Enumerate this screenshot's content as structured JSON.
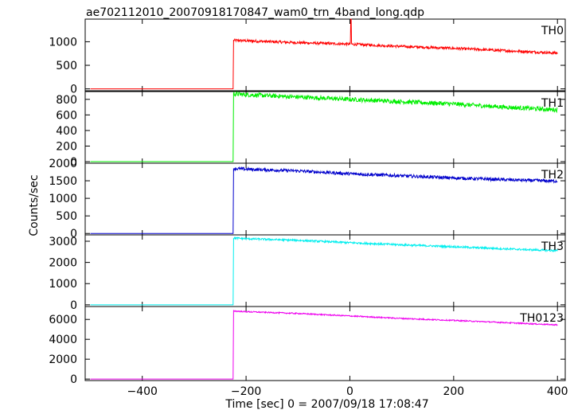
{
  "title": "ae702112010_20070918170847_wam0_trn_4band_long.qdp",
  "ylabel": "Counts/sec",
  "xlabel": "Time [sec] 0 = 2007/09/18 17:08:47",
  "colors": {
    "axis": "#000000",
    "TH0": "#ff0000",
    "TH1": "#00ee00",
    "TH2": "#0000cc",
    "TH3": "#00eeee",
    "TH0123": "#ee00ee"
  },
  "chart_data": {
    "type": "line",
    "title": "ae702112010_20070918170847_wam0_trn_4band_long.qdp",
    "xlabel": "Time [sec] 0 = 2007/09/18 17:08:47",
    "ylabel": "Counts/sec",
    "xlim": [
      -510,
      415
    ],
    "x_ticks": [
      -400,
      -200,
      0,
      200,
      400
    ],
    "x_tick_labels": [
      "−400",
      "−200",
      "0",
      "200",
      "400"
    ],
    "grid": false,
    "panels": [
      {
        "name": "TH0",
        "ylim": [
          -40,
          1480
        ],
        "y_ticks": [
          0,
          500,
          1000
        ],
        "y_tick_labels": [
          "0",
          "500",
          "1000"
        ],
        "x": [
          -500,
          -225,
          -224,
          -200,
          -100,
          0,
          100,
          200,
          300,
          400
        ],
        "y": [
          0,
          0,
          1030,
          1020,
          980,
          950,
          900,
          860,
          810,
          760
        ],
        "spike": {
          "x": 2,
          "y": 1480
        },
        "noise": 28
      },
      {
        "name": "TH1",
        "ylim": [
          -20,
          900
        ],
        "y_ticks": [
          0,
          200,
          400,
          600,
          800
        ],
        "y_tick_labels": [
          "0",
          "200",
          "400",
          "600",
          "800"
        ],
        "x": [
          -500,
          -225,
          -224,
          -200,
          -100,
          0,
          100,
          200,
          300,
          400
        ],
        "y": [
          0,
          0,
          870,
          860,
          830,
          800,
          770,
          740,
          700,
          665
        ],
        "noise": 28
      },
      {
        "name": "TH2",
        "ylim": [
          -40,
          2000
        ],
        "y_ticks": [
          0,
          500,
          1000,
          1500,
          2000
        ],
        "y_tick_labels": [
          "0",
          "500",
          "1000",
          "1500",
          "2000"
        ],
        "x": [
          -500,
          -225,
          -224,
          -200,
          -100,
          0,
          100,
          200,
          300,
          400
        ],
        "y": [
          0,
          0,
          1850,
          1830,
          1780,
          1700,
          1640,
          1580,
          1530,
          1490
        ],
        "noise": 45
      },
      {
        "name": "TH3",
        "ylim": [
          -80,
          3300
        ],
        "y_ticks": [
          0,
          1000,
          2000,
          3000
        ],
        "y_tick_labels": [
          "0",
          "1000",
          "2000",
          "3000"
        ],
        "x": [
          -500,
          -225,
          -224,
          -200,
          -100,
          0,
          100,
          200,
          300,
          400
        ],
        "y": [
          0,
          0,
          3150,
          3120,
          3040,
          2930,
          2830,
          2740,
          2640,
          2550
        ],
        "noise": 45
      },
      {
        "name": "TH0123",
        "ylim": [
          -150,
          7300
        ],
        "y_ticks": [
          0,
          2000,
          4000,
          6000
        ],
        "y_tick_labels": [
          "0",
          "2000",
          "4000",
          "6000"
        ],
        "x": [
          -500,
          -225,
          -224,
          -200,
          -100,
          0,
          100,
          200,
          300,
          400
        ],
        "y": [
          0,
          0,
          6850,
          6780,
          6600,
          6350,
          6100,
          5900,
          5680,
          5450
        ],
        "noise": 60
      }
    ]
  }
}
